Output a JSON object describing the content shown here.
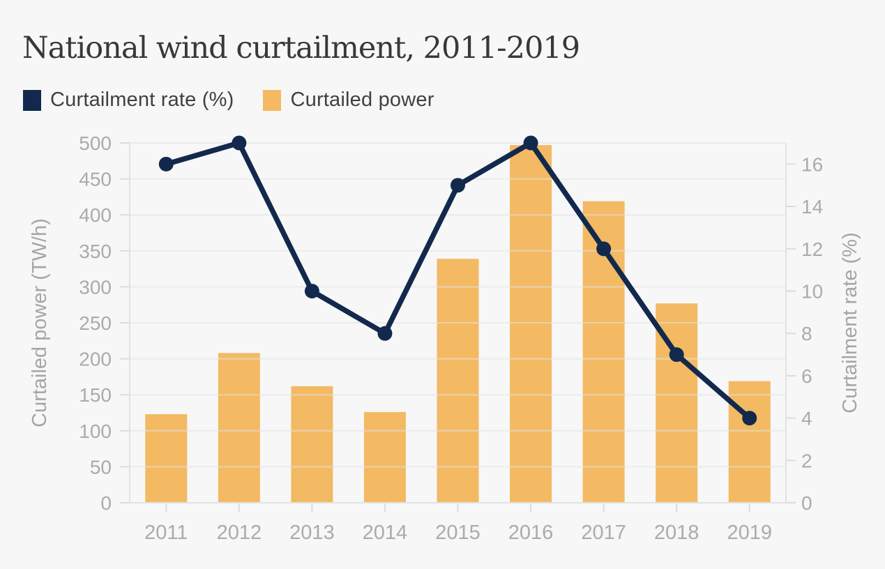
{
  "page": {
    "background": "#f7f7f7"
  },
  "chart": {
    "title": "National wind curtailment, 2011-2019",
    "legend": [
      {
        "label": "Curtailment rate (%)",
        "color": "#12294d",
        "series_type": "line"
      },
      {
        "label": "Curtailed power",
        "color": "#f3ba63",
        "series_type": "bar"
      }
    ]
  },
  "chart_data": {
    "type": "combo-bar-line-dual-axis",
    "title": "National wind curtailment, 2011-2019",
    "categories": [
      "2011",
      "2012",
      "2013",
      "2014",
      "2015",
      "2016",
      "2017",
      "2018",
      "2019"
    ],
    "series": [
      {
        "name": "Curtailed power",
        "type": "bar",
        "axis": "left",
        "color": "#f3ba63",
        "values": [
          123,
          208,
          162,
          126,
          339,
          497,
          419,
          277,
          169
        ]
      },
      {
        "name": "Curtailment rate (%)",
        "type": "line",
        "axis": "right",
        "color": "#12294d",
        "values": [
          16,
          17,
          10,
          8,
          15,
          17,
          12,
          7,
          4
        ]
      }
    ],
    "left_axis": {
      "title": "Curtailed power (TW/h)",
      "min": 0,
      "max": 500,
      "tick_interval": 50,
      "ticks": [
        0,
        50,
        100,
        150,
        200,
        250,
        300,
        350,
        400,
        450,
        500
      ]
    },
    "right_axis": {
      "title": "Curtailment rate (%)",
      "min": 0,
      "max": 17,
      "tick_interval": 2,
      "ticks": [
        0,
        2,
        4,
        6,
        8,
        10,
        12,
        14,
        16
      ]
    },
    "grid": "horizontal-only",
    "legend_position": "top-left",
    "styles": {
      "tick_label_color": "#ababab",
      "axis_title_color": "#a5a5a5",
      "grid_color": "rgba(226,226,226,0.6)",
      "axis_line_color": "#e2e2e2",
      "tick_mark_color": "#dcdcdc"
    }
  }
}
